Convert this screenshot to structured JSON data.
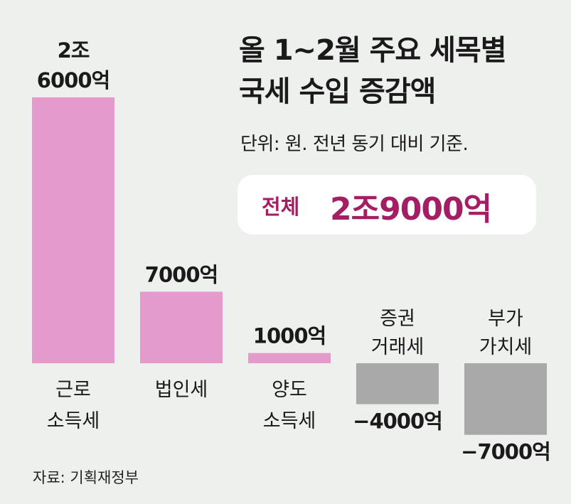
{
  "title_lines": [
    "올 1~2월 주요 세목별",
    "국세 수입 증감액"
  ],
  "unit_text": "단위: 원. 전년 동기 대비 기준.",
  "total": {
    "label": "전체",
    "value": "2조9000억"
  },
  "source": "자료: 기획재정부",
  "colors": {
    "positive": "#e49bcb",
    "negative": "#a8a8a8",
    "accent": "#a41e63",
    "background": "#eef0ee"
  },
  "chart_data": {
    "type": "bar",
    "unit": "억 원",
    "categories": [
      {
        "lines": [
          "근로",
          "소득세"
        ]
      },
      {
        "lines": [
          "법인세"
        ]
      },
      {
        "lines": [
          "양도",
          "소득세"
        ]
      },
      {
        "lines": [
          "증권",
          "거래세"
        ]
      },
      {
        "lines": [
          "부가",
          "가치세"
        ]
      }
    ],
    "values": [
      26000,
      7000,
      1000,
      -4000,
      -7000
    ],
    "value_labels": [
      [
        "2조",
        "6000억"
      ],
      [
        "7000억"
      ],
      [
        "1000억"
      ],
      [
        "−4000억"
      ],
      [
        "−7000억"
      ]
    ],
    "ylim": [
      -7000,
      26000
    ],
    "grid": false,
    "legend": "none"
  }
}
